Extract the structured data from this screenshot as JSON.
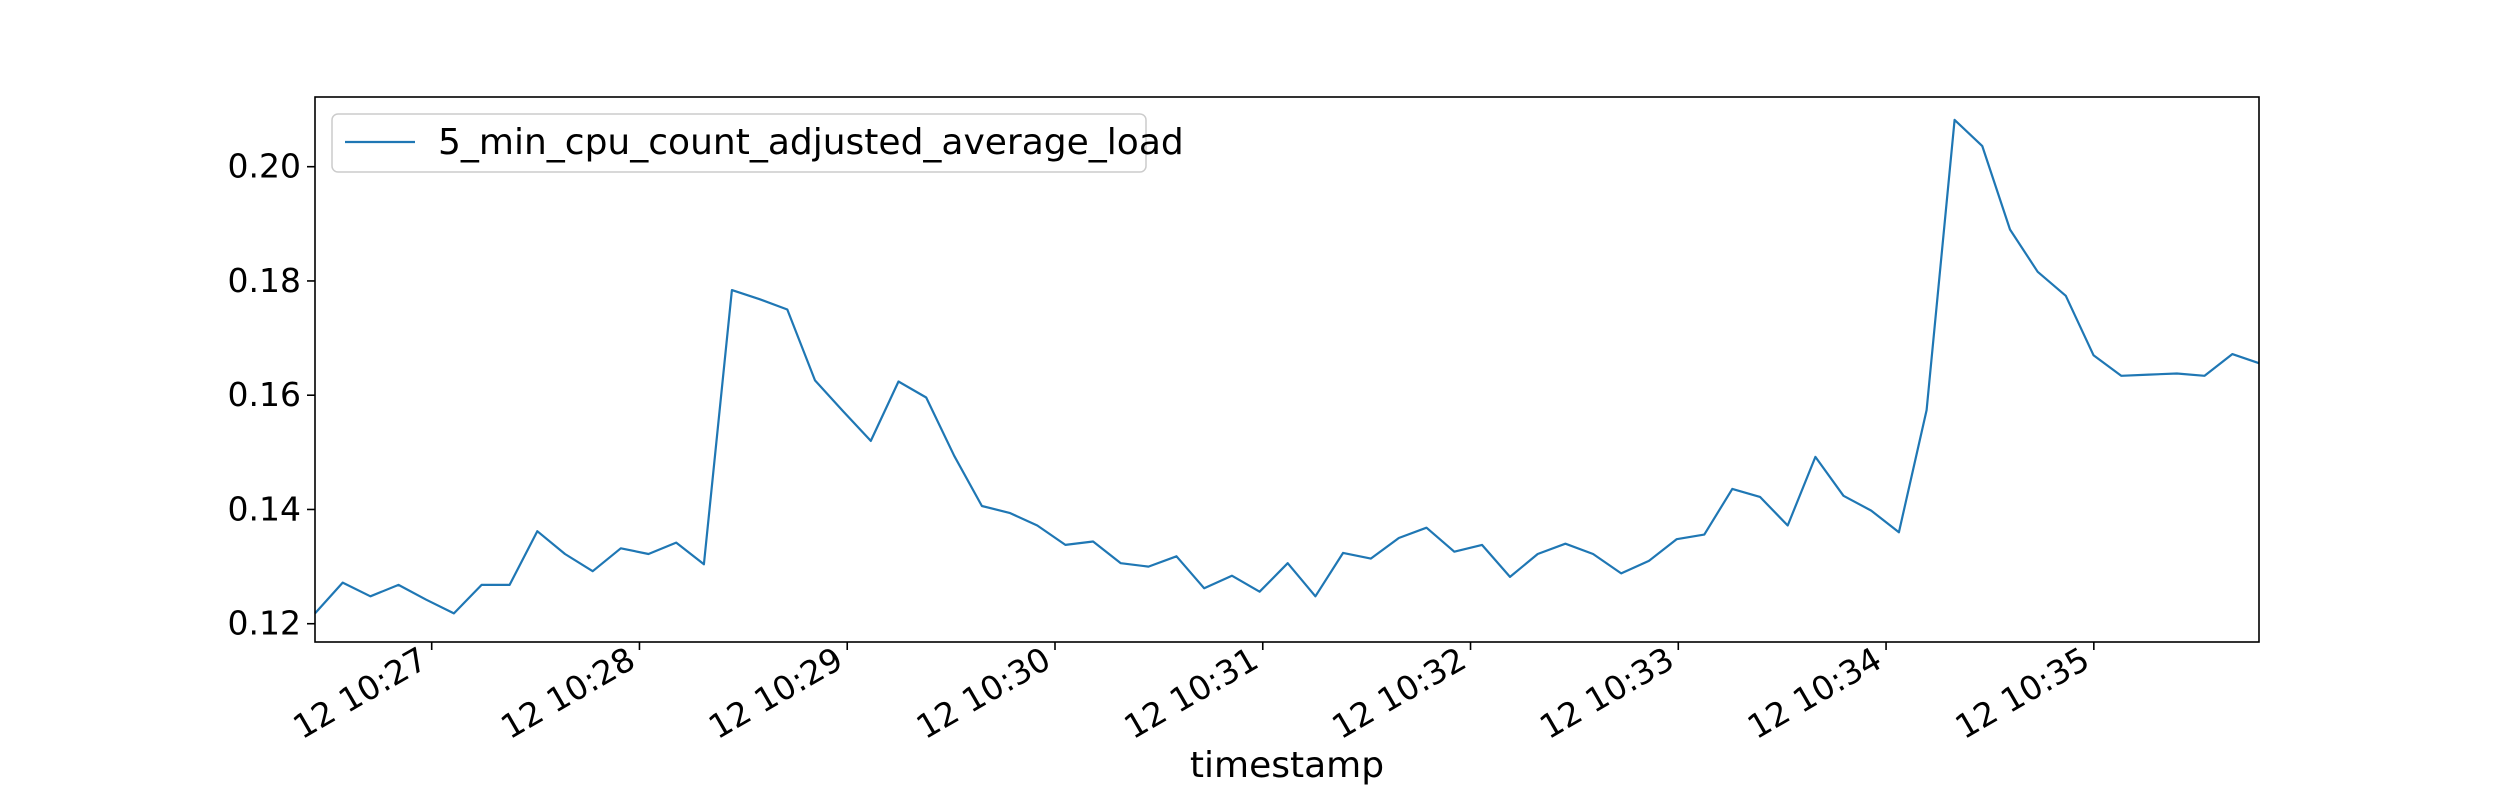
{
  "chart_data": {
    "type": "line",
    "title": "",
    "xlabel": "timestamp",
    "ylabel": "",
    "x_tick_labels": [
      "12 10:27",
      "12 10:28",
      "12 10:29",
      "12 10:30",
      "12 10:31",
      "12 10:32",
      "12 10:33",
      "12 10:34",
      "12 10:35"
    ],
    "y_tick_labels": [
      "0.12",
      "0.14",
      "0.16",
      "0.18",
      "0.20"
    ],
    "y_ticks": [
      0.12,
      0.14,
      0.16,
      0.18,
      0.2
    ],
    "ylim": [
      0.1168,
      0.2122
    ],
    "xlim_seconds": [
      -33.7,
      527.7
    ],
    "legend_position": "upper left",
    "grid": false,
    "series": [
      {
        "name": "5_min_cpu_count_adjusted_average_load",
        "color": "#1f77b4",
        "x_seconds": [
          -33.7,
          -25.7,
          -17.7,
          -9.6,
          -1.6,
          6.4,
          14.4,
          22.5,
          30.5,
          38.5,
          46.5,
          54.6,
          62.6,
          70.6,
          78.6,
          86.7,
          94.7,
          102.7,
          110.7,
          118.8,
          126.8,
          134.8,
          142.8,
          150.9,
          158.9,
          166.9,
          174.9,
          183.0,
          191.0,
          199.0,
          207.0,
          215.1,
          223.1,
          231.1,
          239.1,
          247.2,
          255.2,
          263.2,
          271.2,
          279.3,
          287.3,
          295.3,
          303.3,
          311.4,
          319.4,
          327.4,
          335.4,
          343.5,
          351.5,
          359.5,
          367.5,
          375.6,
          383.6,
          391.6,
          399.6,
          407.7,
          415.7,
          423.7,
          431.7,
          439.8,
          447.8,
          455.8,
          463.8,
          471.9,
          479.9,
          487.9,
          495.9,
          504.0,
          512.0,
          520.0,
          527.7
        ],
        "values": [
          0.1218,
          0.1272,
          0.1248,
          0.1268,
          0.1242,
          0.1218,
          0.1268,
          0.1268,
          0.1362,
          0.1322,
          0.1292,
          0.1332,
          0.1322,
          0.1342,
          0.1304,
          0.1784,
          0.1768,
          0.175,
          0.1626,
          0.1572,
          0.152,
          0.1624,
          0.1596,
          0.1494,
          0.1406,
          0.1394,
          0.1372,
          0.1338,
          0.1344,
          0.1306,
          0.13,
          0.1318,
          0.1262,
          0.1284,
          0.1256,
          0.1306,
          0.1248,
          0.1324,
          0.1314,
          0.135,
          0.1368,
          0.1326,
          0.1338,
          0.1282,
          0.1322,
          0.134,
          0.1322,
          0.1288,
          0.131,
          0.1348,
          0.1356,
          0.1436,
          0.1422,
          0.1372,
          0.1492,
          0.1424,
          0.1398,
          0.136,
          0.1574,
          0.2082,
          0.2036,
          0.189,
          0.1816,
          0.1774,
          0.167,
          0.1634,
          0.1636,
          0.1638,
          0.1634,
          0.1672,
          0.1656
        ]
      }
    ]
  }
}
